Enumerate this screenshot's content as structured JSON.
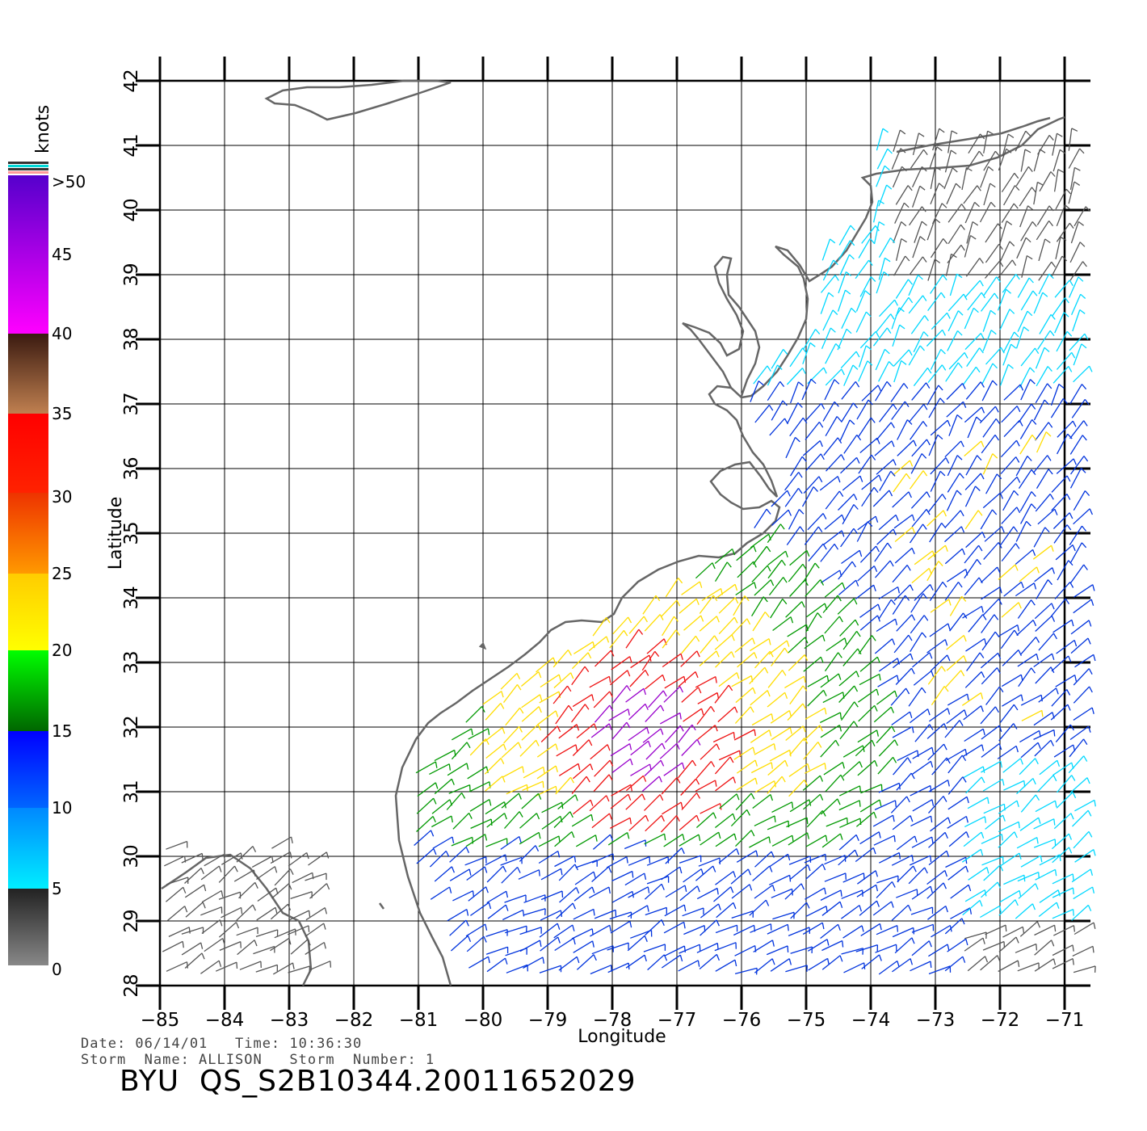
{
  "figure": {
    "type": "wind-vector-map",
    "xlabel": "Longitude",
    "ylabel": "Latitude",
    "xlim": [
      -85,
      -71
    ],
    "ylim": [
      28,
      42
    ],
    "x_ticks": [
      "−85",
      "−84",
      "−83",
      "−82",
      "−81",
      "−80",
      "−79",
      "−78",
      "−77",
      "−76",
      "−75",
      "−74",
      "−73",
      "−72",
      "−71"
    ],
    "y_ticks": [
      "28",
      "29",
      "30",
      "31",
      "32",
      "33",
      "34",
      "35",
      "36",
      "37",
      "38",
      "39",
      "40",
      "41",
      "42"
    ],
    "grid": true
  },
  "colorbar": {
    "unit_label": "knots",
    "labels": [
      "0",
      "5",
      "10",
      "15",
      "20",
      "25",
      "30",
      "35",
      "40",
      "45",
      ">50"
    ],
    "colors": {
      "calm": "#555555",
      "light": "#00d8ff",
      "moderate": "#0033dd",
      "fresh": "#009900",
      "strong": "#ffdd00",
      "gale": "#ff6600",
      "storm": "#ee1111",
      "violent": "#8b4a2b",
      "extreme": "#9900cc"
    }
  },
  "info": {
    "date_line": "Date: 06/14/01   Time: 10:36:30",
    "storm_line": "Storm  Name: ALLISON   Storm  Number: 1",
    "file_id": "BYU  QS_S2B10344.20011652029"
  },
  "chart_data": {
    "type": "wind-barb-field",
    "storm": "ALLISON",
    "date": "06/14/01",
    "time": "10:36:30",
    "lon_range": [
      -85,
      -71
    ],
    "lat_range": [
      28,
      42
    ],
    "speed_scale_knots": [
      0,
      5,
      10,
      15,
      20,
      25,
      30,
      35,
      40,
      45,
      50
    ]
  }
}
